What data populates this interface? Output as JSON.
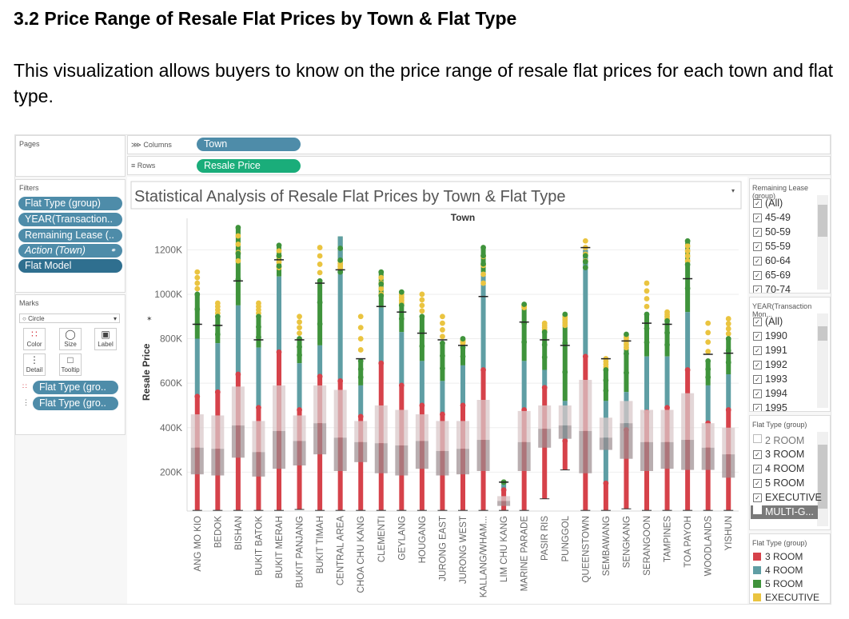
{
  "heading": "3.2 Price Range of Resale Flat Prices by Town & Flat Type",
  "paragraph": "This visualization allows buyers to know on the price range of resale flat prices for each town and flat type.",
  "shelves": {
    "pages_label": "Pages",
    "columns_label": "Columns",
    "rows_label": "Rows",
    "columns_pill": "Town",
    "rows_pill": "Resale Price"
  },
  "filters": {
    "label": "Filters",
    "items": [
      "Flat Type (group)",
      "YEAR(Transaction..",
      "Remaining Lease (..",
      "Action (Town)",
      "Flat Model"
    ]
  },
  "marks": {
    "label": "Marks",
    "type": "Circle",
    "buttons": [
      "Color",
      "Size",
      "Label",
      "Detail",
      "Tooltip"
    ],
    "pills": [
      "Flat Type (gro..",
      "Flat Type (gro.."
    ]
  },
  "view": {
    "title": "Statistical Analysis of Resale Flat Prices by Town & Flat Type",
    "x_header": "Town",
    "y_label": "Resale Price"
  },
  "side_filters": {
    "lease": {
      "title": "Remaining Lease (group)",
      "items": [
        "(All)",
        "45-49",
        "50-59",
        "55-59",
        "60-64",
        "65-69",
        "70-74"
      ]
    },
    "year": {
      "title": "YEAR(Transaction Mon...",
      "items": [
        "(All)",
        "1990",
        "1991",
        "1992",
        "1993",
        "1994",
        "1995"
      ]
    },
    "flat_type": {
      "title": "Flat Type (group)",
      "items": [
        "2 ROOM",
        "3 ROOM",
        "4 ROOM",
        "5 ROOM",
        "EXECUTIVE",
        "MULTI-G..."
      ],
      "checked": [
        false,
        true,
        true,
        true,
        true,
        false
      ]
    }
  },
  "legend": {
    "title": "Flat Type (group)",
    "items": [
      {
        "label": "3 ROOM",
        "color": "#d6424a"
      },
      {
        "label": "4 ROOM",
        "color": "#5f9ea4"
      },
      {
        "label": "5 ROOM",
        "color": "#3f933b"
      },
      {
        "label": "EXECUTIVE",
        "color": "#eac440"
      }
    ]
  },
  "chart_data": {
    "type": "scatter",
    "title": "Statistical Analysis of Resale Flat Prices by Town & Flat Type",
    "xlabel": "Town",
    "ylabel": "Resale Price",
    "ylim": [
      25000,
      1320000
    ],
    "yticks": [
      200000,
      400000,
      600000,
      800000,
      1000000,
      1200000
    ],
    "ytick_labels": [
      "200K",
      "400K",
      "600K",
      "800K",
      "1000K",
      "1200K"
    ],
    "series_colors": {
      "3 ROOM": "#d6424a",
      "4 ROOM": "#5f9ea4",
      "5 ROOM": "#3f933b",
      "EXECUTIVE": "#eac440"
    },
    "towns": [
      {
        "name": "ANG MO KIO",
        "min": 28000,
        "q1": 190000,
        "med": 310000,
        "q3": 460000,
        "whisker": 865000,
        "r3": 540000,
        "r4": 800000,
        "r5": 1000000,
        "exec": 1100000
      },
      {
        "name": "BEDOK",
        "min": 28000,
        "q1": 185000,
        "med": 305000,
        "q3": 455000,
        "whisker": 860000,
        "r3": 560000,
        "r4": 780000,
        "r5": 900000,
        "exec": 960000
      },
      {
        "name": "BISHAN",
        "min": 28000,
        "q1": 265000,
        "med": 410000,
        "q3": 585000,
        "whisker": 1060000,
        "r3": 640000,
        "r4": 950000,
        "r5": 1300000,
        "exec": 1150000
      },
      {
        "name": "BUKIT BATOK",
        "min": 28000,
        "q1": 180000,
        "med": 290000,
        "q3": 430000,
        "whisker": 795000,
        "r3": 490000,
        "r4": 760000,
        "r5": 900000,
        "exec": 960000
      },
      {
        "name": "BUKIT MERAH",
        "min": 28000,
        "q1": 215000,
        "med": 385000,
        "q3": 590000,
        "whisker": 1155000,
        "r3": 740000,
        "r4": 1080000,
        "r5": 1220000,
        "exec": 1120000
      },
      {
        "name": "BUKIT PANJANG",
        "min": 32000,
        "q1": 230000,
        "med": 340000,
        "q3": 455000,
        "whisker": 795000,
        "r3": 480000,
        "r4": 690000,
        "r5": 800000,
        "exec": 900000
      },
      {
        "name": "BUKIT TIMAH",
        "min": 28000,
        "q1": 280000,
        "med": 420000,
        "q3": 590000,
        "whisker": 1050000,
        "r3": 630000,
        "r4": 770000,
        "r5": 1060000,
        "exec": 1210000
      },
      {
        "name": "CENTRAL AREA",
        "min": 28000,
        "q1": 205000,
        "med": 355000,
        "q3": 570000,
        "whisker": 1110000,
        "r3": 610000,
        "r4": 1260000,
        "r5": 1100000,
        "exec": 1150000
      },
      {
        "name": "CHOA CHU KANG",
        "min": 28000,
        "q1": 245000,
        "med": 335000,
        "q3": 430000,
        "whisker": 710000,
        "r3": 450000,
        "r4": 590000,
        "r5": 700000,
        "exec": 900000
      },
      {
        "name": "CLEMENTI",
        "min": 28000,
        "q1": 195000,
        "med": 330000,
        "q3": 500000,
        "whisker": 945000,
        "r3": 690000,
        "r4": 940000,
        "r5": 1100000,
        "exec": 1000000
      },
      {
        "name": "GEYLANG",
        "min": 28000,
        "q1": 185000,
        "med": 320000,
        "q3": 480000,
        "whisker": 920000,
        "r3": 590000,
        "r4": 830000,
        "r5": 1010000,
        "exec": 960000
      },
      {
        "name": "HOUGANG",
        "min": 28000,
        "q1": 215000,
        "med": 340000,
        "q3": 460000,
        "whisker": 825000,
        "r3": 500000,
        "r4": 700000,
        "r5": 900000,
        "exec": 1000000
      },
      {
        "name": "JURONG EAST",
        "min": 28000,
        "q1": 185000,
        "med": 295000,
        "q3": 430000,
        "whisker": 795000,
        "r3": 460000,
        "r4": 610000,
        "r5": 780000,
        "exec": 900000
      },
      {
        "name": "JURONG WEST",
        "min": 28000,
        "q1": 190000,
        "med": 305000,
        "q3": 430000,
        "whisker": 770000,
        "r3": 500000,
        "r4": 680000,
        "r5": 800000,
        "exec": 780000
      },
      {
        "name": "KALLANG/WHAM...",
        "min": 28000,
        "q1": 205000,
        "med": 345000,
        "q3": 525000,
        "whisker": 990000,
        "r3": 660000,
        "r4": 1100000,
        "r5": 1210000,
        "exec": 1050000
      },
      {
        "name": "LIM CHU KANG",
        "min": 28000,
        "q1": 48000,
        "med": 70000,
        "q3": 92000,
        "whisker": 155000,
        "r3": 120000,
        "r4": 155000,
        "r5": 155000,
        "exec": 155000
      },
      {
        "name": "MARINE PARADE",
        "min": 28000,
        "q1": 205000,
        "med": 335000,
        "q3": 475000,
        "whisker": 875000,
        "r3": 480000,
        "r4": 700000,
        "r5": 955000,
        "exec": 940000
      },
      {
        "name": "PASIR RIS",
        "min": 80000,
        "q1": 310000,
        "med": 395000,
        "q3": 500000,
        "whisker": 795000,
        "r3": 580000,
        "r4": 660000,
        "r5": 830000,
        "exec": 870000
      },
      {
        "name": "PUNGGOL",
        "min": 210000,
        "q1": 350000,
        "med": 410000,
        "q3": 500000,
        "whisker": 770000,
        "r3": 340000,
        "r4": 520000,
        "r5": 910000,
        "exec": 860000
      },
      {
        "name": "QUEENSTOWN",
        "min": 28000,
        "q1": 195000,
        "med": 385000,
        "q3": 615000,
        "whisker": 1210000,
        "r3": 720000,
        "r4": 1200000,
        "r5": 1120000,
        "exec": 1240000
      },
      {
        "name": "SEMBAWANG",
        "min": 28000,
        "q1": 300000,
        "med": 355000,
        "q3": 445000,
        "whisker": 710000,
        "r3": 150000,
        "r4": 520000,
        "r5": 660000,
        "exec": 710000
      },
      {
        "name": "SENGKANG",
        "min": 35000,
        "q1": 260000,
        "med": 420000,
        "q3": 520000,
        "whisker": 790000,
        "r3": 390000,
        "r4": 560000,
        "r5": 820000,
        "exec": 760000
      },
      {
        "name": "SERANGOON",
        "min": 28000,
        "q1": 205000,
        "med": 335000,
        "q3": 480000,
        "whisker": 870000,
        "r3": 470000,
        "r4": 720000,
        "r5": 910000,
        "exec": 1050000
      },
      {
        "name": "TAMPINES",
        "min": 28000,
        "q1": 215000,
        "med": 335000,
        "q3": 480000,
        "whisker": 865000,
        "r3": 490000,
        "r4": 720000,
        "r5": 880000,
        "exec": 920000
      },
      {
        "name": "TOA PAYOH",
        "min": 28000,
        "q1": 210000,
        "med": 345000,
        "q3": 555000,
        "whisker": 1070000,
        "r3": 660000,
        "r4": 920000,
        "r5": 1240000,
        "exec": 1150000
      },
      {
        "name": "WOODLANDS",
        "min": 28000,
        "q1": 210000,
        "med": 310000,
        "q3": 420000,
        "whisker": 730000,
        "r3": 420000,
        "r4": 590000,
        "r5": 700000,
        "exec": 870000
      },
      {
        "name": "YISHUN",
        "min": 28000,
        "q1": 175000,
        "med": 280000,
        "q3": 400000,
        "whisker": 735000,
        "r3": 480000,
        "r4": 640000,
        "r5": 800000,
        "exec": 890000
      }
    ]
  }
}
